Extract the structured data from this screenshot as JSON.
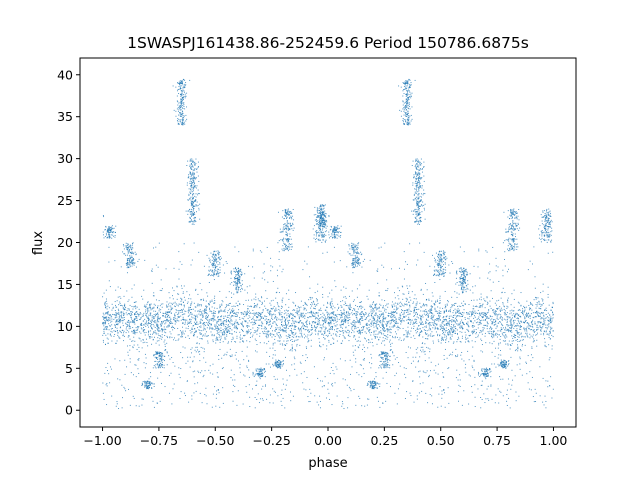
{
  "chart_data": {
    "type": "scatter",
    "title": "1SWASPJ161438.86-252459.6 Period 150786.6875s",
    "xlabel": "phase",
    "ylabel": "flux",
    "xlim": [
      -1.1,
      1.1
    ],
    "ylim": [
      -2,
      42
    ],
    "x_ticks": [
      -1.0,
      -0.75,
      -0.5,
      -0.25,
      0.0,
      0.25,
      0.5,
      0.75,
      1.0
    ],
    "x_tick_labels": [
      "−1.00",
      "−0.75",
      "−0.50",
      "−0.25",
      "0.00",
      "0.25",
      "0.50",
      "0.75",
      "1.00"
    ],
    "y_ticks": [
      0,
      5,
      10,
      15,
      20,
      25,
      30,
      35,
      40
    ],
    "y_tick_labels": [
      "0",
      "5",
      "10",
      "15",
      "20",
      "25",
      "30",
      "35",
      "40"
    ],
    "grid": false,
    "legend": "none",
    "point_color": "#1f77b4",
    "series": [
      {
        "phase_half": [
          0.0,
          0.02,
          0.05,
          0.08,
          0.1,
          0.12,
          0.15,
          0.18,
          0.2,
          0.22,
          0.25,
          0.28,
          0.3,
          0.33,
          0.35,
          0.38,
          0.4,
          0.42,
          0.45,
          0.48,
          0.5,
          0.52,
          0.55,
          0.58,
          0.6,
          0.62,
          0.65,
          0.68,
          0.7,
          0.72,
          0.75,
          0.78,
          0.8,
          0.82,
          0.85,
          0.88,
          0.9,
          0.92,
          0.95,
          0.98,
          1.0
        ],
        "median_flux": [
          10.5,
          11.0,
          10.5,
          10.8,
          11.0,
          10.5,
          10.8,
          10.3,
          11.0,
          10.8,
          10.5,
          10.5,
          11.2,
          10.8,
          11.5,
          11.0,
          10.5,
          10.2,
          10.5,
          10.8,
          11.0,
          10.5,
          10.5,
          10.8,
          10.8,
          10.5,
          10.8,
          11.0,
          11.2,
          10.5,
          10.5,
          10.2,
          10.0,
          10.2,
          10.5,
          10.8,
          11.0,
          11.2,
          10.8,
          10.5,
          10.5
        ],
        "spread": [
          2.5,
          2.5,
          2.8,
          2.5,
          2.5,
          2.8,
          2.5,
          2.5,
          2.6,
          2.5,
          2.5,
          2.7,
          2.6,
          2.8,
          2.8,
          2.6,
          2.5,
          2.6,
          2.5,
          2.5,
          2.5,
          2.5,
          2.6,
          2.5,
          2.5,
          2.5,
          2.6,
          2.5,
          2.5,
          2.6,
          2.7,
          2.8,
          2.8,
          2.6,
          2.6,
          2.6,
          2.5,
          2.5,
          2.5,
          2.5,
          2.5
        ]
      }
    ],
    "features": [
      {
        "phase": 0.35,
        "flux_range": [
          34,
          39.5
        ]
      },
      {
        "phase": 0.4,
        "flux_range": [
          22,
          30
        ]
      },
      {
        "phase": 0.03,
        "flux_range": [
          20.5,
          22
        ]
      },
      {
        "phase": -0.03,
        "flux_range": [
          22,
          24.5
        ]
      },
      {
        "phase": 0.82,
        "flux_range": [
          19,
          24
        ]
      },
      {
        "phase": 0.97,
        "flux_range": [
          20,
          24
        ]
      },
      {
        "phase": 0.12,
        "flux_range": [
          17,
          20
        ]
      },
      {
        "phase": 0.5,
        "flux_range": [
          16,
          19
        ]
      },
      {
        "phase": 0.6,
        "flux_range": [
          14,
          17
        ]
      },
      {
        "phase": 0.25,
        "flux_range": [
          5,
          7
        ]
      },
      {
        "phase": 0.78,
        "flux_range": [
          5,
          6
        ]
      },
      {
        "phase": 0.7,
        "flux_range": [
          4,
          5
        ]
      },
      {
        "phase": 0.2,
        "flux_range": [
          2.5,
          3.5
        ]
      }
    ],
    "note_symmetry": "phase range -1 to 1 shows the same curve twice (mirrored at phase shift of 1)"
  }
}
